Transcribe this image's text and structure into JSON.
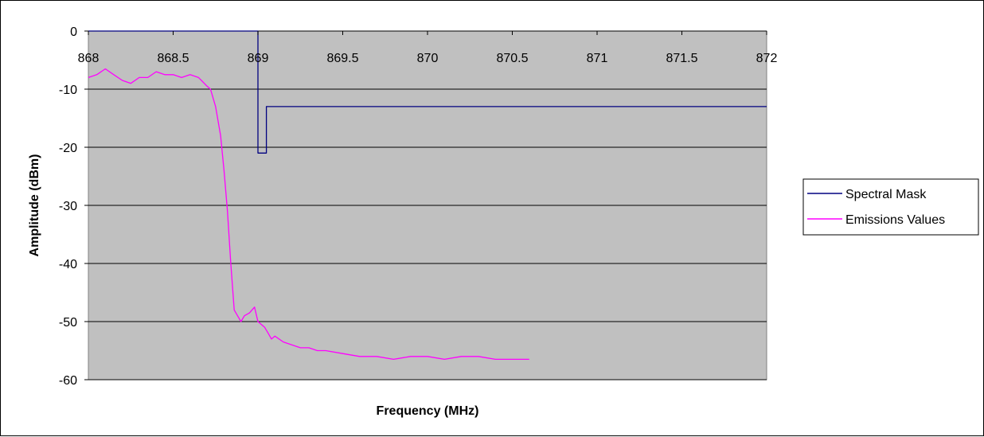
{
  "chart_data": {
    "type": "line",
    "xlabel": "Frequency (MHz)",
    "ylabel": "Amplitude (dBm)",
    "xlim": [
      868,
      872
    ],
    "ylim": [
      -60,
      0
    ],
    "x_ticks": [
      868,
      868.5,
      869,
      869.5,
      870,
      870.5,
      871,
      871.5,
      872
    ],
    "x_tick_labels": [
      "868",
      "868.5",
      "869",
      "869.5",
      "870",
      "870.5",
      "871",
      "871.5",
      "872"
    ],
    "y_ticks": [
      0,
      -10,
      -20,
      -30,
      -40,
      -50,
      -60
    ],
    "y_tick_labels": [
      "0",
      "-10",
      "-20",
      "-30",
      "-40",
      "-50",
      "-60"
    ],
    "x_axis_position": "top",
    "grid": true,
    "plot_background": "#c0c0c0",
    "legend_position": "right",
    "series": [
      {
        "name": "Spectral Mask",
        "color": "#000080",
        "x": [
          868,
          869,
          869,
          869.05,
          869.05,
          872
        ],
        "y": [
          0,
          0,
          -21,
          -21,
          -13,
          -13
        ]
      },
      {
        "name": "Emissions Values",
        "color": "#ff00ff",
        "x": [
          868,
          868.05,
          868.1,
          868.15,
          868.2,
          868.25,
          868.3,
          868.35,
          868.4,
          868.45,
          868.5,
          868.55,
          868.6,
          868.65,
          868.7,
          868.72,
          868.75,
          868.78,
          868.8,
          868.82,
          868.84,
          868.86,
          868.88,
          868.9,
          868.92,
          868.95,
          868.98,
          869.0,
          869.02,
          869.04,
          869.06,
          869.08,
          869.1,
          869.15,
          869.2,
          869.25,
          869.3,
          869.35,
          869.4,
          869.5,
          869.6,
          869.7,
          869.8,
          869.9,
          870.0,
          870.1,
          870.2,
          870.3,
          870.4,
          870.5,
          870.6
        ],
        "y": [
          -8,
          -7.5,
          -6.5,
          -7.5,
          -8.5,
          -9,
          -8,
          -8,
          -7,
          -7.5,
          -7.5,
          -8,
          -7.5,
          -8,
          -9.5,
          -10,
          -13,
          -18,
          -24,
          -31,
          -40,
          -48,
          -49,
          -50,
          -49,
          -48.5,
          -47.5,
          -50,
          -50.5,
          -51,
          -52,
          -53,
          -52.5,
          -53.5,
          -54,
          -54.5,
          -54.5,
          -55,
          -55,
          -55.5,
          -56,
          -56,
          -56.5,
          -56,
          -56,
          -56.5,
          -56,
          -56,
          -56.5,
          -56.5,
          -56.5
        ]
      }
    ]
  }
}
